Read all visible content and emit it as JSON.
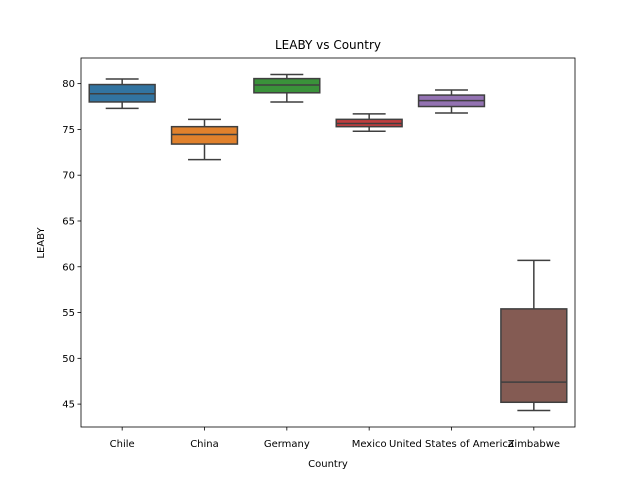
{
  "chart_data": {
    "type": "box",
    "title": "LEABY vs Country",
    "xlabel": "Country",
    "ylabel": "LEABY",
    "ylim": [
      42.5,
      82.8
    ],
    "yticks": [
      45,
      50,
      55,
      60,
      65,
      70,
      75,
      80
    ],
    "categories": [
      "Chile",
      "China",
      "Germany",
      "Mexico",
      "United States of America",
      "Zimbabwe"
    ],
    "boxes": [
      {
        "category": "Chile",
        "whisker_low": 77.3,
        "q1": 78.0,
        "median": 78.9,
        "q3": 79.9,
        "whisker_high": 80.5,
        "color": "#3274a1"
      },
      {
        "category": "China",
        "whisker_low": 71.7,
        "q1": 73.4,
        "median": 74.45,
        "q3": 75.3,
        "whisker_high": 76.1,
        "color": "#e1812c"
      },
      {
        "category": "Germany",
        "whisker_low": 78.0,
        "q1": 79.0,
        "median": 79.85,
        "q3": 80.55,
        "whisker_high": 81.0,
        "color": "#3a923a"
      },
      {
        "category": "Mexico",
        "whisker_low": 74.8,
        "q1": 75.3,
        "median": 75.65,
        "q3": 76.1,
        "whisker_high": 76.7,
        "color": "#c03d3e"
      },
      {
        "category": "United States of America",
        "whisker_low": 76.8,
        "q1": 77.5,
        "median": 78.15,
        "q3": 78.75,
        "whisker_high": 79.3,
        "color": "#9372b2"
      },
      {
        "category": "Zimbabwe",
        "whisker_low": 44.3,
        "q1": 45.2,
        "median": 47.4,
        "q3": 55.4,
        "whisker_high": 60.7,
        "color": "#845b53"
      }
    ]
  }
}
